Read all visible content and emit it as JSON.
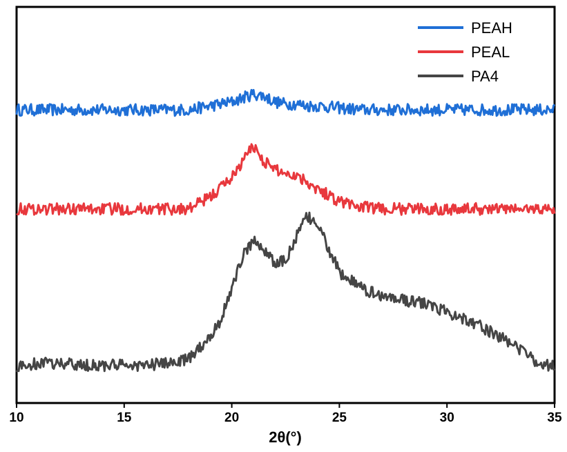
{
  "chart_data": {
    "type": "line",
    "title": "",
    "xlabel": "2θ(°)",
    "ylabel": "",
    "xlim": [
      10,
      35
    ],
    "xticks": [
      10,
      15,
      20,
      25,
      30,
      35
    ],
    "xtick_labels": [
      "10",
      "15",
      "20",
      "25",
      "30",
      "35"
    ],
    "y_axis_visible": false,
    "grid": false,
    "legend": "top-right",
    "series": [
      {
        "name": "PEAH",
        "color": "#1f6fd6",
        "offset": 0.74,
        "x": [
          10,
          11,
          12,
          13,
          14,
          15,
          16,
          17,
          18,
          19,
          20,
          20.5,
          21,
          21.5,
          22,
          22.5,
          23,
          23.5,
          24,
          25,
          26,
          27,
          28,
          29,
          30,
          31,
          32,
          33,
          34,
          35
        ],
        "y": [
          0.0,
          0.0,
          0.0,
          0.0,
          0.0,
          0.0,
          0.0,
          0.0,
          0.0,
          0.01,
          0.02,
          0.03,
          0.04,
          0.035,
          0.02,
          0.015,
          0.015,
          0.01,
          0.01,
          0.005,
          0.0,
          0.0,
          0.0,
          0.0,
          0.0,
          0.0,
          0.0,
          0.0,
          0.0,
          0.0
        ]
      },
      {
        "name": "PEAL",
        "color": "#e8383d",
        "offset": 0.49,
        "x": [
          10,
          11,
          12,
          13,
          14,
          15,
          16,
          17,
          18,
          19,
          20,
          20.5,
          21,
          21.5,
          22,
          22.5,
          23,
          23.5,
          24,
          25,
          26,
          27,
          28,
          29,
          30,
          31,
          32,
          33,
          34,
          35
        ],
        "y": [
          0.0,
          0.0,
          0.0,
          0.0,
          0.0,
          0.0,
          0.0,
          0.0,
          0.0,
          0.03,
          0.08,
          0.12,
          0.16,
          0.12,
          0.1,
          0.09,
          0.085,
          0.07,
          0.05,
          0.02,
          0.005,
          0.0,
          0.0,
          0.0,
          0.0,
          0.0,
          0.0,
          0.0,
          0.0,
          0.0
        ]
      },
      {
        "name": "PA4",
        "color": "#454545",
        "offset": 0.09,
        "x": [
          10,
          11,
          12,
          13,
          14,
          15,
          16,
          17,
          18,
          19,
          19.5,
          20,
          20.5,
          21,
          21.5,
          22,
          22.5,
          23,
          23.5,
          24,
          24.5,
          25,
          26,
          27,
          28,
          29,
          30,
          31,
          32,
          33,
          34,
          35
        ],
        "y": [
          0.0,
          0.01,
          0.01,
          0.005,
          0.005,
          0.005,
          0.005,
          0.01,
          0.02,
          0.08,
          0.12,
          0.2,
          0.28,
          0.32,
          0.3,
          0.26,
          0.27,
          0.33,
          0.38,
          0.36,
          0.3,
          0.24,
          0.2,
          0.18,
          0.17,
          0.16,
          0.14,
          0.12,
          0.09,
          0.06,
          0.02,
          0.0
        ]
      }
    ]
  }
}
